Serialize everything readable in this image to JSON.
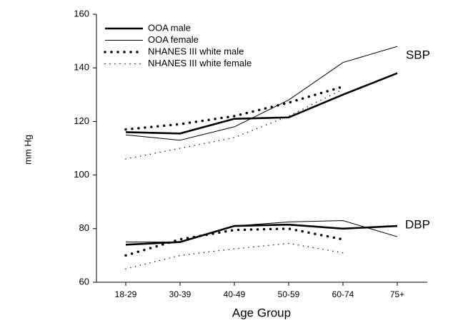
{
  "chart_data": {
    "type": "line",
    "x_label": "Age Group",
    "y_label": "mm Hg",
    "annotations": [
      "SBP",
      "DBP"
    ],
    "categories": [
      "18-29",
      "30-39",
      "40-49",
      "50-59",
      "60-74",
      "75+"
    ],
    "ylim": [
      60,
      160
    ],
    "yticks": [
      60,
      80,
      100,
      120,
      140,
      160
    ],
    "series": [
      {
        "name": "OOA male",
        "color": "#000000",
        "style": "thick",
        "sbp": [
          116,
          115.5,
          121,
          121.5,
          130,
          138
        ],
        "dbp": [
          74,
          75,
          81,
          81.5,
          80,
          81
        ]
      },
      {
        "name": "OOA female",
        "color": "#000000",
        "style": "thin",
        "sbp": [
          115,
          113,
          118,
          128,
          142,
          148
        ],
        "dbp": [
          75,
          75,
          81,
          82.5,
          83,
          77
        ]
      },
      {
        "name": "NHANES III white male",
        "color": "#000000",
        "style": "dots",
        "sbp": [
          117,
          119,
          122,
          127,
          133,
          null
        ],
        "dbp": [
          70,
          76,
          79.5,
          80,
          76,
          null
        ]
      },
      {
        "name": "NHANES III white female",
        "color": "#000000",
        "style": "fine-dots",
        "sbp": [
          106,
          110,
          114,
          122,
          132,
          null
        ],
        "dbp": [
          65,
          70,
          72.5,
          74.5,
          71,
          null
        ]
      }
    ]
  }
}
